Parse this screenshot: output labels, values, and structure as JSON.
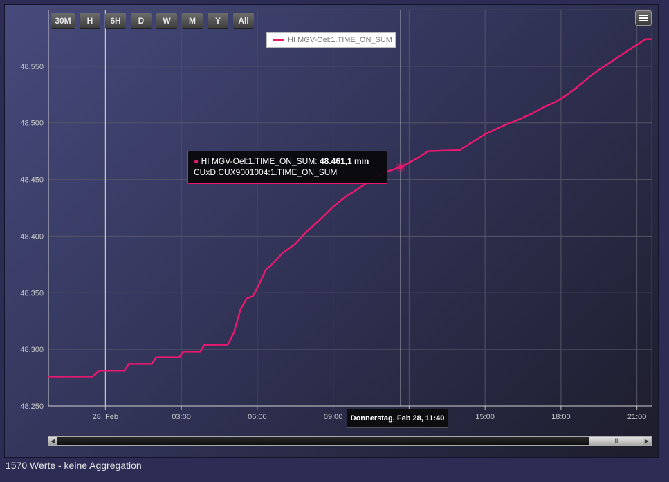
{
  "range_buttons": [
    "30M",
    "H",
    "6H",
    "D",
    "W",
    "M",
    "Y",
    "All"
  ],
  "legend": {
    "label": "HI MGV-Oel:1.TIME_ON_SUM",
    "color": "#e8196e"
  },
  "tooltip": {
    "series_label": "HI MGV-Oel:1.TIME_ON_SUM:",
    "value": "48.461,1 min",
    "subtitle": "CUxD.CUX9001004:1.TIME_ON_SUM"
  },
  "crosshair_label": "Donnerstag, Feb 28, 11:40",
  "scrollbar": {
    "thumb_grip": "III"
  },
  "footer": "1570 Werte - keine Aggregation",
  "colors": {
    "series": "#e8196e",
    "grid": "#555566",
    "axis_text": "#c8c8c8"
  },
  "chart_data": {
    "type": "line",
    "title": "",
    "xlabel": "",
    "ylabel": "",
    "ylim": [
      48250,
      48600
    ],
    "yticks": [
      "48.250",
      "48.300",
      "48.350",
      "48.400",
      "48.450",
      "48.500",
      "48.550"
    ],
    "ytick_values": [
      48250,
      48300,
      48350,
      48400,
      48450,
      48500,
      48550
    ],
    "xlim": [
      "2019-02-27T21:45",
      "2019-02-28T21:35"
    ],
    "xticks": [
      "28. Feb",
      "03:00",
      "06:00",
      "09:00",
      "12:00",
      "15:00",
      "18:00",
      "21:00"
    ],
    "xtick_times": [
      "2019-02-28T00:00",
      "2019-02-28T03:00",
      "2019-02-28T06:00",
      "2019-02-28T09:00",
      "2019-02-28T12:00",
      "2019-02-28T15:00",
      "2019-02-28T18:00",
      "2019-02-28T21:00"
    ],
    "crosshair_time": "2019-02-28T11:40",
    "grid": true,
    "legend_position": "top-center",
    "series": [
      {
        "name": "HI MGV-Oel:1.TIME_ON_SUM",
        "color": "#e8196e",
        "points": [
          [
            "2019-02-27T21:45",
            48276
          ],
          [
            "2019-02-27T23:30",
            48276
          ],
          [
            "2019-02-27T23:45",
            48281
          ],
          [
            "2019-02-28T00:45",
            48281
          ],
          [
            "2019-02-28T00:55",
            48287
          ],
          [
            "2019-02-28T01:50",
            48287
          ],
          [
            "2019-02-28T02:00",
            48293
          ],
          [
            "2019-02-28T02:55",
            48293
          ],
          [
            "2019-02-28T03:05",
            48298
          ],
          [
            "2019-02-28T03:45",
            48298
          ],
          [
            "2019-02-28T03:55",
            48304
          ],
          [
            "2019-02-28T04:50",
            48304
          ],
          [
            "2019-02-28T05:05",
            48315
          ],
          [
            "2019-02-28T05:20",
            48335
          ],
          [
            "2019-02-28T05:35",
            48345
          ],
          [
            "2019-02-28T05:50",
            48347
          ],
          [
            "2019-02-28T06:05",
            48358
          ],
          [
            "2019-02-28T06:20",
            48370
          ],
          [
            "2019-02-28T06:40",
            48377
          ],
          [
            "2019-02-28T07:00",
            48385
          ],
          [
            "2019-02-28T07:30",
            48393
          ],
          [
            "2019-02-28T08:00",
            48405
          ],
          [
            "2019-02-28T08:30",
            48415
          ],
          [
            "2019-02-28T09:00",
            48426
          ],
          [
            "2019-02-28T09:30",
            48435
          ],
          [
            "2019-02-28T10:00",
            48442
          ],
          [
            "2019-02-28T10:30",
            48450
          ],
          [
            "2019-02-28T11:00",
            48456
          ],
          [
            "2019-02-28T11:40",
            48461
          ],
          [
            "2019-02-28T12:20",
            48469
          ],
          [
            "2019-02-28T12:45",
            48475
          ],
          [
            "2019-02-28T14:00",
            48476
          ],
          [
            "2019-02-28T14:30",
            48483
          ],
          [
            "2019-02-28T15:00",
            48490
          ],
          [
            "2019-02-28T15:40",
            48497
          ],
          [
            "2019-02-28T16:20",
            48503
          ],
          [
            "2019-02-28T16:50",
            48508
          ],
          [
            "2019-02-28T17:20",
            48514
          ],
          [
            "2019-02-28T17:50",
            48519
          ],
          [
            "2019-02-28T18:15",
            48525
          ],
          [
            "2019-02-28T18:40",
            48532
          ],
          [
            "2019-02-28T19:05",
            48540
          ],
          [
            "2019-02-28T19:30",
            48547
          ],
          [
            "2019-02-28T19:55",
            48553
          ],
          [
            "2019-02-28T20:15",
            48558
          ],
          [
            "2019-02-28T20:35",
            48563
          ],
          [
            "2019-02-28T21:00",
            48569
          ],
          [
            "2019-02-28T21:20",
            48574
          ],
          [
            "2019-02-28T21:35",
            48574
          ]
        ]
      }
    ]
  }
}
